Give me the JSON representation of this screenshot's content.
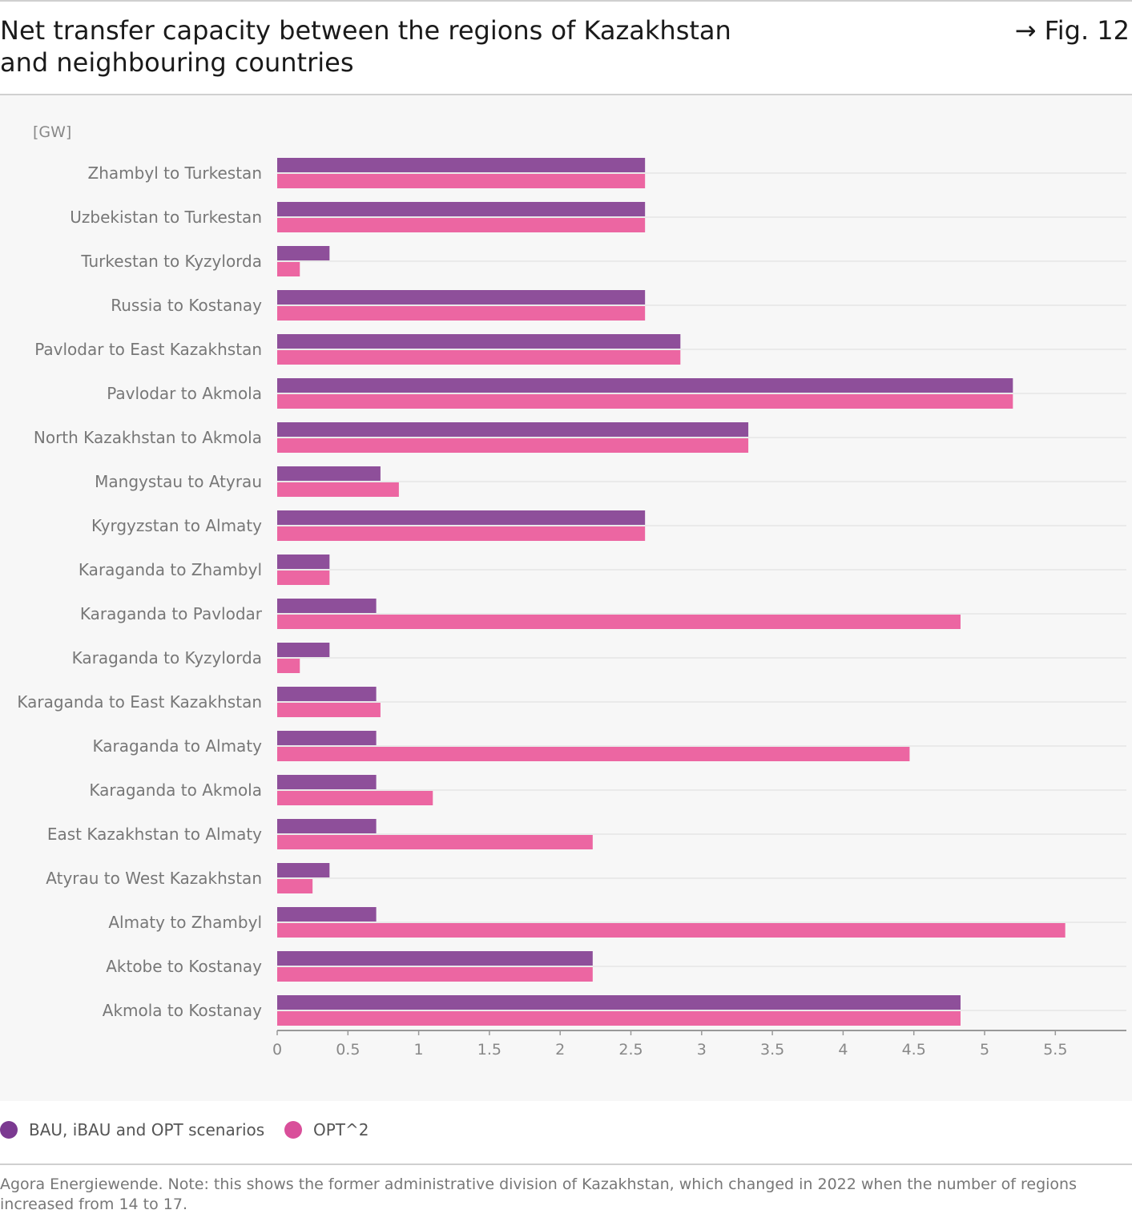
{
  "header": {
    "title": "Net transfer capacity between the regions of Kazakhstan and neighbouring countries",
    "fig_label": "→ Fig. 12"
  },
  "colors": {
    "series_1": "#8e4f9a",
    "series_2": "#ec66a2",
    "legend_1": "#7b3a91",
    "legend_2": "#d94f9a"
  },
  "legend": {
    "items": [
      {
        "label": "BAU, iBAU and OPT scenarios"
      },
      {
        "label": "OPT^2"
      }
    ]
  },
  "note": "Agora Energiewende. Note: this shows the former administrative division of Kazakhstan, which changed in 2022 when the number of regions increased from 14 to 17.",
  "chart_data": {
    "type": "bar",
    "orientation": "horizontal",
    "unit_label": "[GW]",
    "categories": [
      "Zhambyl to Turkestan",
      "Uzbekistan to Turkestan",
      "Turkestan to Kyzylorda",
      "Russia to Kostanay",
      "Pavlodar to East Kazakhstan",
      "Pavlodar to Akmola",
      "North Kazakhstan to Akmola",
      "Mangystau to Atyrau",
      "Kyrgyzstan to Almaty",
      "Karaganda to Zhambyl",
      "Karaganda to Pavlodar",
      "Karaganda to Kyzylorda",
      "Karaganda to East Kazakhstan",
      "Karaganda to Almaty",
      "Karaganda to Akmola",
      "East Kazakhstan to Almaty",
      "Atyrau to West Kazakhstan",
      "Almaty to Zhambyl",
      "Aktobe to Kostanay",
      "Akmola to Kostanay"
    ],
    "series": [
      {
        "name": "BAU, iBAU and OPT scenarios",
        "values": [
          2.6,
          2.6,
          0.37,
          2.6,
          2.85,
          5.2,
          3.33,
          0.73,
          2.6,
          0.37,
          0.7,
          0.37,
          0.7,
          0.7,
          0.7,
          0.7,
          0.37,
          0.7,
          2.23,
          4.83
        ]
      },
      {
        "name": "OPT^2",
        "values": [
          2.6,
          2.6,
          0.16,
          2.6,
          2.85,
          5.2,
          3.33,
          0.86,
          2.6,
          0.37,
          4.83,
          0.16,
          0.73,
          4.47,
          1.1,
          2.23,
          0.25,
          5.57,
          2.23,
          4.83
        ]
      }
    ],
    "x_ticks": [
      "0",
      "0.5",
      "1",
      "1.5",
      "2",
      "2.5",
      "3",
      "3.5",
      "4",
      "4.5",
      "5",
      "5.5"
    ],
    "xlim": [
      0,
      5.9
    ],
    "grid": true,
    "legend_position": "bottom-left"
  }
}
